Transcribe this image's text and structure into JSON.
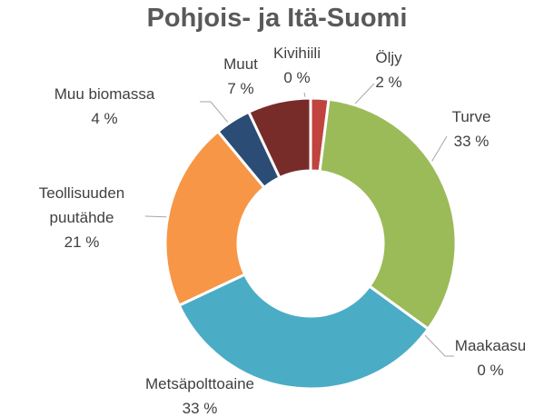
{
  "chart_data": {
    "type": "donut",
    "title": "Pohjois- ja Itä-Suomi",
    "categories": [
      "Öljy",
      "Turve",
      "Maakaasu",
      "Metsäpolttoaine",
      "Teollisuuden puutähde",
      "Muu biomassa",
      "Muut",
      "Kivihiili"
    ],
    "values": [
      2,
      33,
      0,
      33,
      21,
      4,
      7,
      0
    ],
    "value_labels": [
      "2 %",
      "33 %",
      "0 %",
      "33 %",
      "21 %",
      "4 %",
      "7 %",
      "0 %"
    ],
    "colors": [
      "#c0433f",
      "#9bbb59",
      "#7f7f7f",
      "#4bacc6",
      "#f79646",
      "#2b4c74",
      "#772c2a",
      "#7f7f7f"
    ]
  }
}
